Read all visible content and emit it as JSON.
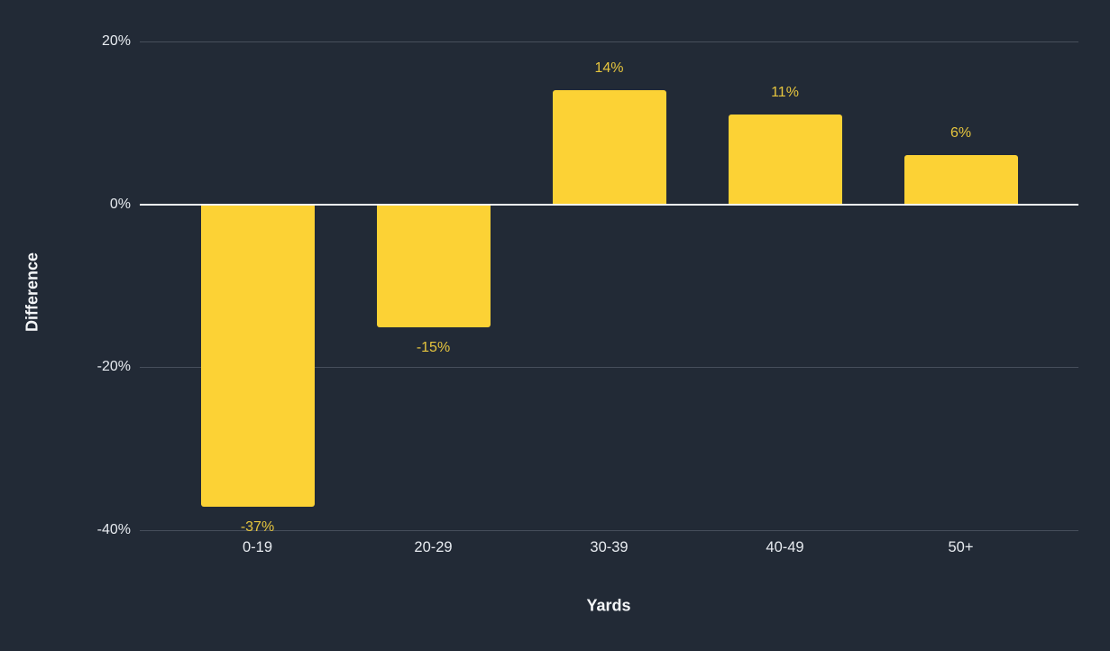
{
  "chart_data": {
    "type": "bar",
    "title": "",
    "categories": [
      "0-19",
      "20-29",
      "30-39",
      "40-49",
      "50+"
    ],
    "values": [
      -37,
      -15,
      14,
      11,
      6
    ],
    "value_labels": [
      "-37%",
      "-15%",
      "14%",
      "11%",
      "6%"
    ],
    "xlabel": "Yards",
    "ylabel": "Difference",
    "ylim": [
      -40,
      20
    ],
    "yticks": [
      {
        "value": 20,
        "label": "20%"
      },
      {
        "value": 0,
        "label": "0%"
      },
      {
        "value": -20,
        "label": "-20%"
      },
      {
        "value": -40,
        "label": "-40%"
      }
    ],
    "grid": true,
    "legend": "none",
    "colors": {
      "background": "#222A36",
      "bar": "#FCD235",
      "value_label": "#E6C53E",
      "tick_label": "#E7EBF0",
      "axis_title": "#F4F6F8",
      "zero_line": "#F2F5F8",
      "gridline": "rgba(200,210,225,0.22)"
    }
  }
}
